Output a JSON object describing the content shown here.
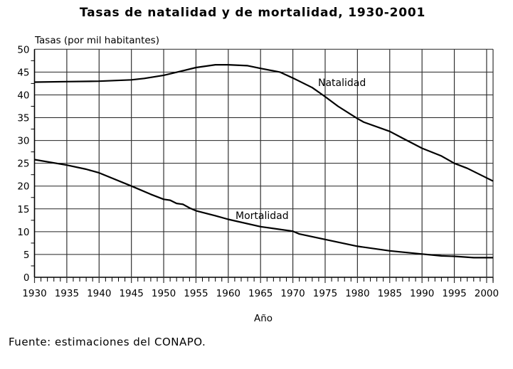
{
  "chart_data": {
    "type": "line",
    "title": "Tasas de natalidad y de mortalidad, 1930-2001",
    "ylabel": "Tasas (por mil habitantes)",
    "xlabel": "Año",
    "xlim": [
      1930,
      2001
    ],
    "ylim": [
      0,
      50
    ],
    "xticks": [
      1930,
      1935,
      1940,
      1945,
      1950,
      1955,
      1960,
      1965,
      1970,
      1975,
      1980,
      1985,
      1990,
      1995,
      2000
    ],
    "yticks": [
      0,
      5,
      10,
      15,
      20,
      25,
      30,
      35,
      40,
      45,
      50
    ],
    "grid": true,
    "series": [
      {
        "name": "Natalidad",
        "x": [
          1930,
          1935,
          1940,
          1945,
          1947,
          1950,
          1953,
          1955,
          1958,
          1960,
          1963,
          1965,
          1968,
          1970,
          1973,
          1975,
          1977,
          1980,
          1981,
          1985,
          1987,
          1990,
          1993,
          1995,
          1997,
          2000,
          2001
        ],
        "y": [
          42.8,
          42.9,
          43.0,
          43.3,
          43.6,
          44.3,
          45.3,
          46.0,
          46.6,
          46.6,
          46.4,
          45.8,
          45.0,
          43.7,
          41.6,
          39.6,
          37.5,
          34.8,
          34.0,
          32.0,
          30.5,
          28.3,
          26.6,
          25.0,
          23.9,
          21.8,
          21.1
        ]
      },
      {
        "name": "Mortalidad",
        "x": [
          1930,
          1935,
          1938,
          1940,
          1945,
          1948,
          1950,
          1951,
          1952,
          1953,
          1954,
          1955,
          1958,
          1960,
          1965,
          1970,
          1971,
          1975,
          1980,
          1985,
          1990,
          1993,
          1995,
          1998,
          2000,
          2001
        ],
        "y": [
          25.8,
          24.6,
          23.7,
          22.9,
          20.0,
          18.2,
          17.1,
          16.9,
          16.2,
          16.0,
          15.2,
          14.6,
          13.5,
          12.7,
          11.1,
          10.1,
          9.5,
          8.3,
          6.8,
          5.8,
          5.1,
          4.7,
          4.6,
          4.3,
          4.3,
          4.3
        ]
      }
    ],
    "annotations": {
      "natalidad": "Natalidad",
      "mortalidad": "Mortalidad"
    }
  },
  "source": "Fuente: estimaciones del CONAPO."
}
